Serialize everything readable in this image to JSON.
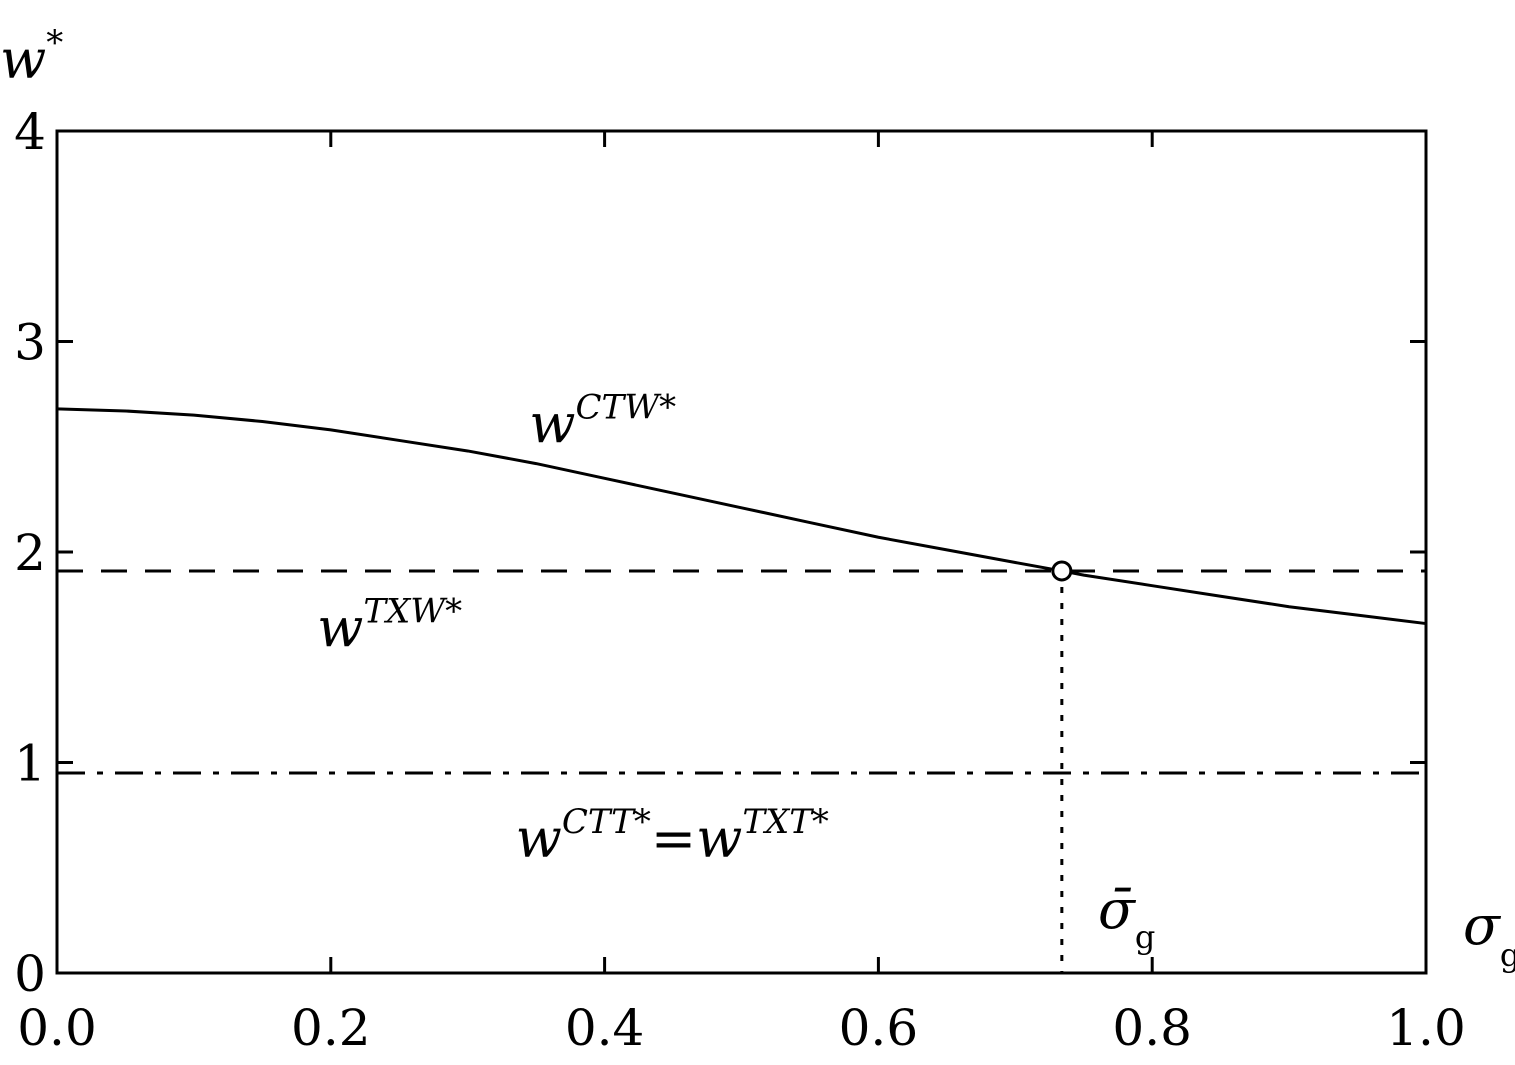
{
  "chart_data": {
    "type": "line",
    "title": "",
    "xlabel": "σ",
    "xlabel_sub": "g",
    "ylabel": "w",
    "ylabel_sup": "*",
    "xlim": [
      0,
      1
    ],
    "ylim": [
      0,
      4
    ],
    "x_ticks": [
      "0.0",
      "0.2",
      "0.4",
      "0.6",
      "0.8",
      "1.0"
    ],
    "y_ticks": [
      "0",
      "1",
      "2",
      "3",
      "4"
    ],
    "grid": false,
    "series": [
      {
        "name": "w^{CTW*}",
        "style": "solid",
        "x": [
          0.0,
          0.05,
          0.1,
          0.15,
          0.2,
          0.25,
          0.3,
          0.35,
          0.4,
          0.45,
          0.5,
          0.55,
          0.6,
          0.65,
          0.7,
          0.734,
          0.75,
          0.8,
          0.85,
          0.9,
          0.95,
          1.0
        ],
        "y": [
          2.68,
          2.67,
          2.65,
          2.62,
          2.58,
          2.53,
          2.48,
          2.42,
          2.35,
          2.28,
          2.21,
          2.14,
          2.07,
          2.01,
          1.95,
          1.91,
          1.89,
          1.84,
          1.79,
          1.74,
          1.7,
          1.66
        ]
      },
      {
        "name": "w^{TXW*}",
        "style": "dashed",
        "x": [
          0.0,
          1.0
        ],
        "y": [
          1.91,
          1.91
        ]
      },
      {
        "name": "w^{CTT*}=w^{TXT*}",
        "style": "dashdot",
        "x": [
          0.0,
          1.0
        ],
        "y": [
          0.95,
          0.95
        ]
      }
    ],
    "marker": {
      "x": 0.734,
      "y": 1.91
    },
    "vline": {
      "x": 0.734,
      "style": "dotted",
      "label": "σ̄",
      "label_sub": "g"
    },
    "annotations": [
      {
        "base": "w",
        "sup": "CTW*",
        "x": 0.345,
        "y": 2.52
      },
      {
        "base": "w",
        "sup": "TXW*",
        "x": 0.19,
        "y": 1.55
      },
      {
        "base": "w",
        "sup": "CTT*",
        "eq": "=",
        "base2": "w",
        "sup2": "TXT*",
        "x": 0.335,
        "y": 0.55
      }
    ]
  }
}
